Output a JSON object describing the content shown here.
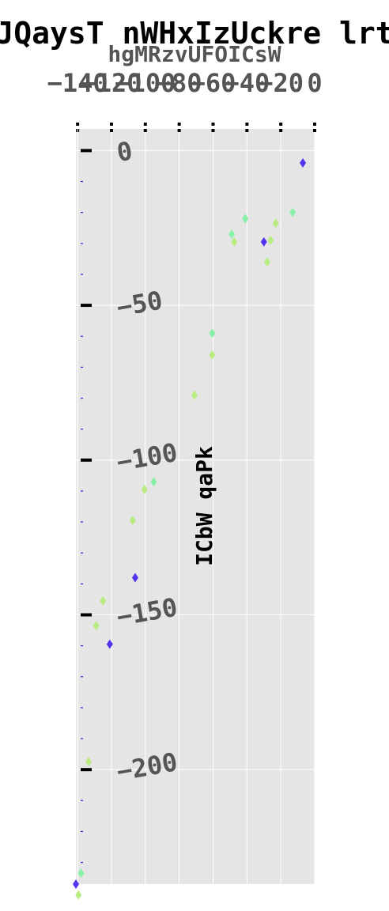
{
  "chart_data": {
    "type": "scatter",
    "title": "JQaysT nWHxIzUckre lrt",
    "xlabel": "hgMRzvUFOICsW",
    "ylabel": "ICbW qaPk",
    "xlim": [
      -141,
      0
    ],
    "ylim": [
      -237,
      7
    ],
    "x_ticks": [
      -140,
      -120,
      -100,
      -80,
      -60,
      -40,
      -20,
      0
    ],
    "x_tick_labels": [
      "−140",
      "−120",
      "−100",
      "−80",
      "−60",
      "−40",
      "−20",
      "0"
    ],
    "y_ticks": [
      0,
      -50,
      -100,
      -150,
      -200
    ],
    "y_tick_labels": [
      "0",
      "−50",
      "−100",
      "−150",
      "−200"
    ],
    "y_minor_ticks": [
      -10,
      -20,
      -30,
      -40,
      -60,
      -70,
      -80,
      -90,
      -110,
      -120,
      -130,
      -140,
      -160,
      -170,
      -180,
      -190,
      -210,
      -220,
      -230
    ],
    "grid": true,
    "marker": "thin_diamond",
    "colors": {
      "background": "#e5e5e5",
      "grid": "#ffffff",
      "minor_tick": "#2222dd",
      "purple": "#5533ee",
      "green": "#88f0a8",
      "lime": "#b8ec80",
      "text_dark": "#000000",
      "text_tick": "#555555"
    },
    "points": [
      {
        "x": -7,
        "y": -4,
        "color": "purple"
      },
      {
        "x": -13,
        "y": -20,
        "color": "green"
      },
      {
        "x": -23,
        "y": -23.5,
        "color": "lime"
      },
      {
        "x": -41,
        "y": -22,
        "color": "green"
      },
      {
        "x": -49,
        "y": -27,
        "color": "green"
      },
      {
        "x": -47.5,
        "y": -29.5,
        "color": "lime"
      },
      {
        "x": -26,
        "y": -29,
        "color": "lime"
      },
      {
        "x": -30,
        "y": -29.5,
        "color": "purple"
      },
      {
        "x": -28,
        "y": -36,
        "color": "lime"
      },
      {
        "x": -60.5,
        "y": -59,
        "color": "green"
      },
      {
        "x": -60.5,
        "y": -66,
        "color": "lime"
      },
      {
        "x": -71,
        "y": -79,
        "color": "lime"
      },
      {
        "x": -95,
        "y": -107,
        "color": "green"
      },
      {
        "x": -100.5,
        "y": -109.5,
        "color": "lime"
      },
      {
        "x": -107.5,
        "y": -119.5,
        "color": "lime"
      },
      {
        "x": -106,
        "y": -138,
        "color": "purple"
      },
      {
        "x": -125,
        "y": -145.5,
        "color": "lime"
      },
      {
        "x": -129,
        "y": -153.5,
        "color": "lime"
      },
      {
        "x": -121,
        "y": -159.5,
        "color": "purple"
      },
      {
        "x": -133.5,
        "y": -197.5,
        "color": "lime"
      },
      {
        "x": -138,
        "y": -233.5,
        "color": "green"
      },
      {
        "x": -141,
        "y": -237,
        "color": "purple"
      },
      {
        "x": -139.5,
        "y": -240.5,
        "color": "lime"
      }
    ]
  }
}
